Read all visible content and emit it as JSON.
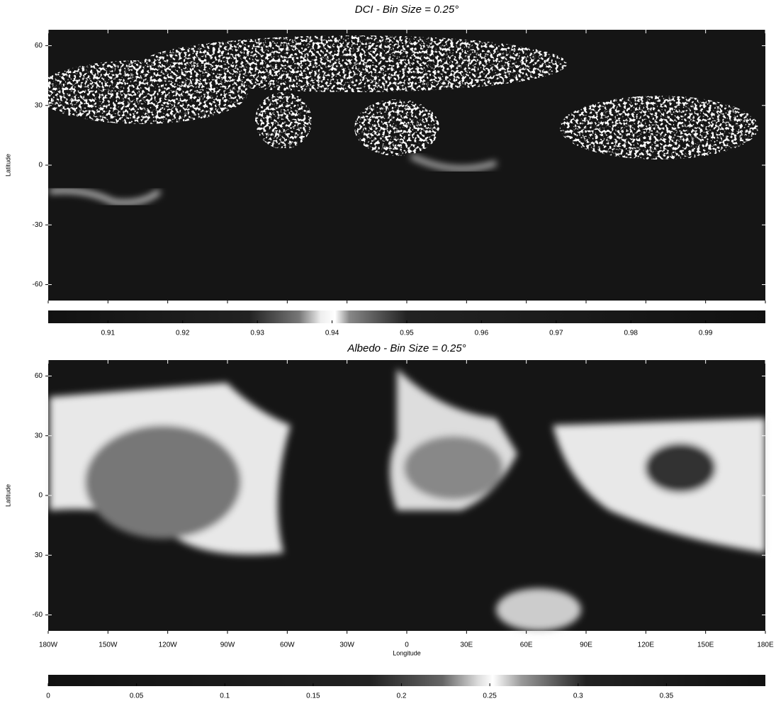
{
  "chart_data": [
    {
      "type": "heatmap",
      "title": "DCI - Bin Size = 0.25°",
      "ylabel": "Latitude",
      "xlim": [
        -180,
        180
      ],
      "ylim": [
        -68,
        68
      ],
      "yticks": [
        60,
        30,
        0,
        -30,
        -60
      ],
      "clim": [
        0.902,
        0.998
      ],
      "cticks": [
        {
          "value": 0.91,
          "label": "0.91"
        },
        {
          "value": 0.92,
          "label": "0.92"
        },
        {
          "value": 0.93,
          "label": "0.93"
        },
        {
          "value": 0.94,
          "label": "0.94"
        },
        {
          "value": 0.95,
          "label": "0.95"
        },
        {
          "value": 0.96,
          "label": "0.96"
        },
        {
          "value": 0.97,
          "label": "0.97"
        },
        {
          "value": 0.98,
          "label": "0.98"
        },
        {
          "value": 0.99,
          "label": "0.99"
        }
      ]
    },
    {
      "type": "heatmap",
      "title": "Albedo - Bin Size = 0.25°",
      "ylabel": "Latitude",
      "xlabel": "Longitude",
      "xlim": [
        -180,
        180
      ],
      "xticks": [
        {
          "value": -180,
          "label": "180W"
        },
        {
          "value": -150,
          "label": "150W"
        },
        {
          "value": -120,
          "label": "120W"
        },
        {
          "value": -90,
          "label": "90W"
        },
        {
          "value": -60,
          "label": "60W"
        },
        {
          "value": -30,
          "label": "30W"
        },
        0,
        {
          "value": 30,
          "label": "30E"
        },
        {
          "value": 60,
          "label": "60E"
        },
        {
          "value": 90,
          "label": "90E"
        },
        {
          "value": 120,
          "label": "120E"
        },
        {
          "value": 150,
          "label": "150E"
        },
        {
          "value": 180,
          "label": "180E"
        }
      ],
      "ylim": [
        -68,
        68
      ],
      "yticks": [
        60,
        30,
        0,
        {
          "value": -30,
          "label": "30"
        },
        -60
      ],
      "clim": [
        0,
        0.406
      ],
      "cticks": [
        0,
        0.05,
        0.1,
        0.15,
        0.2,
        0.25,
        0.3,
        0.35
      ]
    }
  ]
}
